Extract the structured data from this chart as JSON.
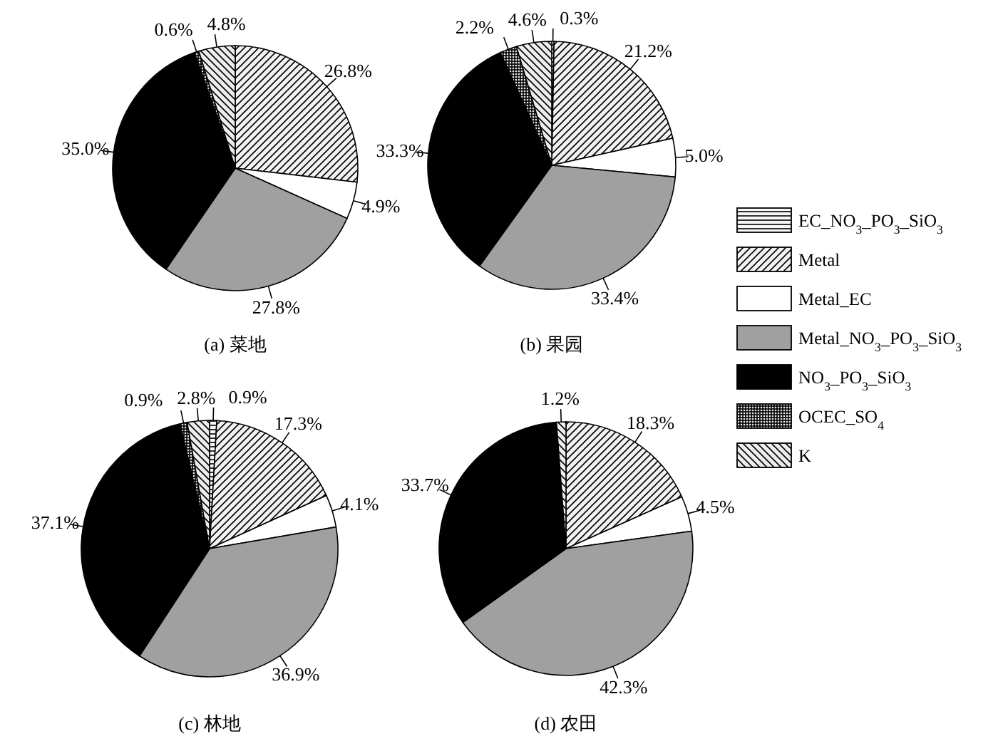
{
  "chart_data": [
    {
      "type": "pie",
      "title": "(a)  菜地",
      "categories": [
        null,
        null,
        null,
        null,
        null,
        null,
        null
      ],
      "values": [
        null,
        26.8,
        4.9,
        27.8,
        35.0,
        0.6,
        4.8
      ],
      "value_labels": [
        null,
        "26.8%",
        "4.9%",
        "27.8%",
        "35.0%",
        "0.6%",
        "4.8%"
      ],
      "colors": [
        null,
        "#f2f2f2",
        "#ffffff",
        "#a0a0a0",
        "#000000",
        "#e6e6e6",
        "#ededed"
      ]
    },
    {
      "type": "pie",
      "title": "(b)  果园",
      "categories": [
        "EC_NO$_{3}$_PO$_{3}$_SiO$_{3}$",
        "Metal",
        "Metal_EC",
        "Metal_NO$_{3}$_PO$_{3}$_SiO$_{3}$",
        "NO$_{3}$_PO$_{3}$_SiO$_{3}$",
        "OCEC_SO$_{4}$",
        "K"
      ],
      "values": [
        0.3,
        21.2,
        5.0,
        33.4,
        33.3,
        2.2,
        4.6
      ],
      "value_labels": [
        "0.3%",
        "21.2%",
        "5.0%",
        "33.4%",
        "33.3%",
        "2.2%",
        "4.6%"
      ],
      "colors": [
        "#f7f7f7",
        "#f2f2f2",
        "#ffffff",
        "#a0a0a0",
        "#000000",
        "#e6e6e6",
        "#ededed"
      ],
      "legend": "right"
    },
    {
      "type": "pie",
      "title": "(c)  林地",
      "categories": [
        null,
        null,
        null,
        null,
        null,
        null,
        null
      ],
      "values": [
        0.9,
        17.3,
        4.1,
        36.9,
        37.1,
        0.9,
        2.8
      ],
      "value_labels": [
        "0.9%",
        "17.3%",
        "4.1%",
        "36.9%",
        "37.1%",
        "0.9%",
        "2.8%"
      ],
      "colors": [
        "#f7f7f7",
        "#f2f2f2",
        "#ffffff",
        "#a0a0a0",
        "#000000",
        "#e6e6e6",
        "#ededed"
      ]
    },
    {
      "type": "pie",
      "title": "(d)  农田",
      "categories": [
        null,
        null,
        null,
        null,
        null,
        null,
        null
      ],
      "values": [
        null,
        18.3,
        4.5,
        42.3,
        33.7,
        null,
        1.2
      ],
      "value_labels": [
        null,
        "18.3%",
        "4.5%",
        "42.3%",
        "33.7%",
        null,
        "1.2%"
      ],
      "colors": [
        null,
        "#f2f2f2",
        "#ffffff",
        "#a0a0a0",
        "#000000",
        null,
        "#ededed"
      ]
    }
  ]
}
